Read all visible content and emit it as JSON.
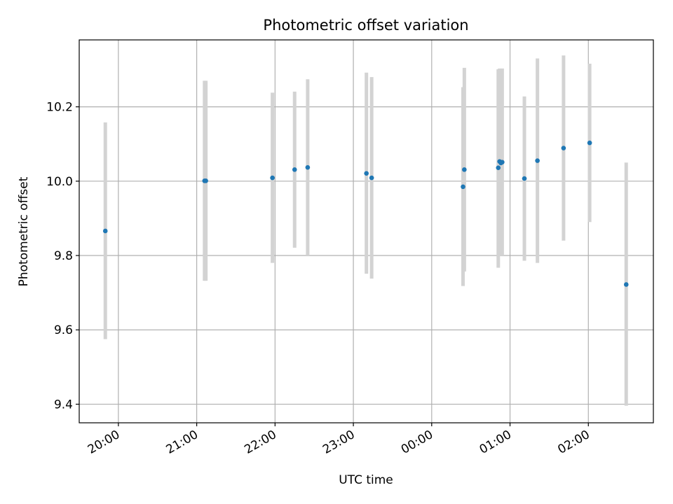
{
  "chart_data": {
    "type": "scatter",
    "title": "Photometric offset variation",
    "xlabel": "UTC time",
    "ylabel": "Photometric offset",
    "x_ticks": [
      "20:00",
      "21:00",
      "22:00",
      "23:00",
      "00:00",
      "01:00",
      "02:00"
    ],
    "y_ticks": [
      "9.4",
      "9.6",
      "9.8",
      "10.0",
      "10.2"
    ],
    "y_tick_values": [
      9.4,
      9.6,
      9.8,
      10.0,
      10.2
    ],
    "xlim_hours": [
      19.5,
      26.83
    ],
    "ylim": [
      9.35,
      10.38
    ],
    "grid": true,
    "colors": {
      "point": "#1f77b4",
      "errorbar": "#d3d3d3",
      "grid": "#b0b0b0"
    },
    "points": [
      {
        "t": "19:50",
        "y": 9.866,
        "lo": 9.575,
        "hi": 10.158
      },
      {
        "t": "21:06",
        "y": 10.001,
        "lo": 9.732,
        "hi": 10.27
      },
      {
        "t": "21:07",
        "y": 10.001,
        "lo": 9.732,
        "hi": 10.27
      },
      {
        "t": "21:58",
        "y": 10.009,
        "lo": 9.78,
        "hi": 10.238
      },
      {
        "t": "22:15",
        "y": 10.031,
        "lo": 9.821,
        "hi": 10.241
      },
      {
        "t": "22:25",
        "y": 10.037,
        "lo": 9.8,
        "hi": 10.274
      },
      {
        "t": "23:10",
        "y": 10.021,
        "lo": 9.751,
        "hi": 10.292
      },
      {
        "t": "23:14",
        "y": 10.009,
        "lo": 9.738,
        "hi": 10.28
      },
      {
        "t": "00:24",
        "y": 9.985,
        "lo": 9.718,
        "hi": 10.253
      },
      {
        "t": "00:25",
        "y": 10.031,
        "lo": 9.757,
        "hi": 10.305
      },
      {
        "t": "00:51",
        "y": 10.036,
        "lo": 9.767,
        "hi": 10.301
      },
      {
        "t": "00:52",
        "y": 10.053,
        "lo": 9.803,
        "hi": 10.303
      },
      {
        "t": "00:53",
        "y": 10.049,
        "lo": 9.8,
        "hi": 10.3
      },
      {
        "t": "00:54",
        "y": 10.051,
        "lo": 9.8,
        "hi": 10.303
      },
      {
        "t": "01:11",
        "y": 10.007,
        "lo": 9.786,
        "hi": 10.228
      },
      {
        "t": "01:21",
        "y": 10.055,
        "lo": 9.78,
        "hi": 10.33
      },
      {
        "t": "01:41",
        "y": 10.089,
        "lo": 9.84,
        "hi": 10.338
      },
      {
        "t": "02:01",
        "y": 10.103,
        "lo": 9.89,
        "hi": 10.316
      },
      {
        "t": "02:29",
        "y": 9.722,
        "lo": 9.396,
        "hi": 10.05
      }
    ]
  }
}
